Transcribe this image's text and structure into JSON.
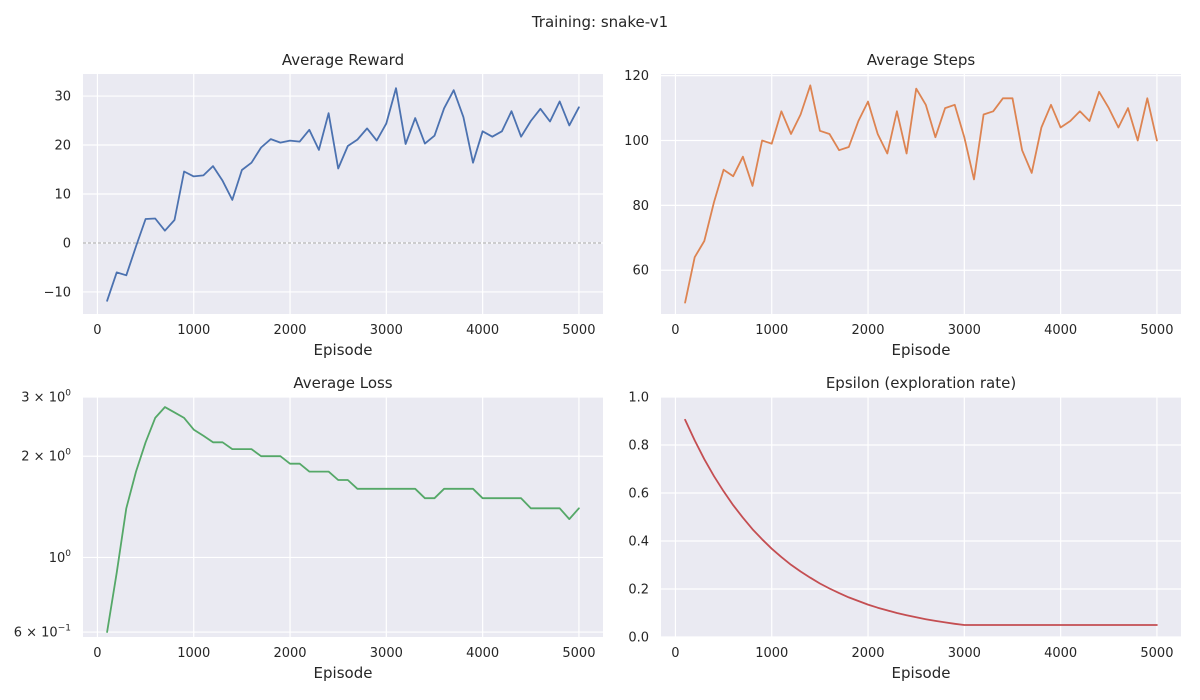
{
  "figure": {
    "title": "Training: snake-v1"
  },
  "chart_data": [
    {
      "type": "line",
      "title": "Average Reward",
      "xlabel": "Episode",
      "ylabel": "",
      "xlim": [
        -150,
        5250
      ],
      "ylim": [
        -14.5,
        34.5
      ],
      "xticks": [
        0,
        1000,
        2000,
        3000,
        4000,
        5000
      ],
      "xtick_labels": [
        "0",
        "1000",
        "2000",
        "3000",
        "4000",
        "5000"
      ],
      "yticks": [
        -10,
        0,
        10,
        20,
        30
      ],
      "ytick_labels": [
        "−10",
        "0",
        "10",
        "20",
        "30"
      ],
      "yscale": "linear",
      "grid": true,
      "reference_line": {
        "y": 0,
        "style": "dashed",
        "color": "#a8a8a8"
      },
      "series": [
        {
          "color": "#4c72b0",
          "x": [
            100,
            200,
            300,
            400,
            500,
            600,
            700,
            800,
            900,
            1000,
            1100,
            1200,
            1300,
            1400,
            1500,
            1600,
            1700,
            1800,
            1900,
            2000,
            2100,
            2200,
            2300,
            2400,
            2500,
            2600,
            2700,
            2800,
            2900,
            3000,
            3100,
            3200,
            3300,
            3400,
            3500,
            3600,
            3700,
            3800,
            3900,
            4000,
            4100,
            4200,
            4300,
            4400,
            4500,
            4600,
            4700,
            4800,
            4900,
            5000
          ],
          "y": [
            -11.8,
            -6.0,
            -6.6,
            -0.7,
            4.9,
            5.0,
            2.5,
            4.7,
            14.6,
            13.6,
            13.8,
            15.7,
            12.7,
            8.8,
            14.9,
            16.4,
            19.5,
            21.2,
            20.5,
            20.9,
            20.7,
            23.1,
            19.0,
            26.5,
            15.2,
            19.8,
            21.1,
            23.4,
            20.9,
            24.4,
            31.6,
            20.2,
            25.5,
            20.3,
            21.9,
            27.5,
            31.2,
            25.7,
            16.4,
            22.8,
            21.7,
            22.8,
            26.9,
            21.7,
            24.9,
            27.4,
            24.8,
            28.9,
            24.0,
            27.7
          ]
        }
      ]
    },
    {
      "type": "line",
      "title": "Average Steps",
      "xlabel": "Episode",
      "ylabel": "",
      "xlim": [
        -150,
        5250
      ],
      "ylim": [
        46.5,
        120.5
      ],
      "xticks": [
        0,
        1000,
        2000,
        3000,
        4000,
        5000
      ],
      "xtick_labels": [
        "0",
        "1000",
        "2000",
        "3000",
        "4000",
        "5000"
      ],
      "yticks": [
        60,
        80,
        100,
        120
      ],
      "ytick_labels": [
        "60",
        "80",
        "100",
        "120"
      ],
      "yscale": "linear",
      "grid": true,
      "series": [
        {
          "color": "#dd8452",
          "x": [
            100,
            200,
            300,
            400,
            500,
            600,
            700,
            800,
            900,
            1000,
            1100,
            1200,
            1300,
            1400,
            1500,
            1600,
            1700,
            1800,
            1900,
            2000,
            2100,
            2200,
            2300,
            2400,
            2500,
            2600,
            2700,
            2800,
            2900,
            3000,
            3100,
            3200,
            3300,
            3400,
            3500,
            3600,
            3700,
            3800,
            3900,
            4000,
            4100,
            4200,
            4300,
            4400,
            4500,
            4600,
            4700,
            4800,
            4900,
            5000
          ],
          "y": [
            50,
            64,
            69,
            81,
            91,
            89,
            95,
            86,
            100,
            99,
            109,
            102,
            108,
            117,
            103,
            102,
            97,
            98,
            106,
            112,
            102,
            96,
            109,
            96,
            116,
            111,
            101,
            110,
            111,
            101,
            88,
            108,
            109,
            113,
            113,
            97,
            90,
            104,
            111,
            104,
            106,
            109,
            106,
            115,
            110,
            104,
            110,
            100,
            113,
            100
          ]
        }
      ]
    },
    {
      "type": "line",
      "title": "Average Loss",
      "xlabel": "Episode",
      "ylabel": "",
      "xlim": [
        -150,
        5250
      ],
      "ylim": [
        0.58,
        3.0
      ],
      "xticks": [
        0,
        1000,
        2000,
        3000,
        4000,
        5000
      ],
      "xtick_labels": [
        "0",
        "1000",
        "2000",
        "3000",
        "4000",
        "5000"
      ],
      "yscale": "log",
      "yticks": [
        0.6,
        1,
        2,
        3
      ],
      "ytick_labels": [
        {
          "base": "6 × 10",
          "exp": "−1"
        },
        {
          "base": "10",
          "exp": "0"
        },
        {
          "base": "2 × 10",
          "exp": "0"
        },
        {
          "base": "3 × 10",
          "exp": "0"
        }
      ],
      "grid": true,
      "series": [
        {
          "color": "#55a868",
          "x": [
            100,
            200,
            300,
            400,
            500,
            600,
            700,
            800,
            900,
            1000,
            1100,
            1200,
            1300,
            1400,
            1500,
            1600,
            1700,
            1800,
            1900,
            2000,
            2100,
            2200,
            2300,
            2400,
            2500,
            2600,
            2700,
            2800,
            2900,
            3000,
            3100,
            3200,
            3300,
            3400,
            3500,
            3600,
            3700,
            3800,
            3900,
            4000,
            4100,
            4200,
            4300,
            4400,
            4500,
            4600,
            4700,
            4800,
            4900,
            5000
          ],
          "y": [
            0.6,
            0.9,
            1.4,
            1.8,
            2.2,
            2.6,
            2.8,
            2.7,
            2.6,
            2.4,
            2.3,
            2.2,
            2.2,
            2.1,
            2.1,
            2.1,
            2.0,
            2.0,
            2.0,
            1.9,
            1.9,
            1.8,
            1.8,
            1.8,
            1.7,
            1.7,
            1.6,
            1.6,
            1.6,
            1.6,
            1.6,
            1.6,
            1.6,
            1.5,
            1.5,
            1.6,
            1.6,
            1.6,
            1.6,
            1.5,
            1.5,
            1.5,
            1.5,
            1.5,
            1.4,
            1.4,
            1.4,
            1.4,
            1.3,
            1.4
          ]
        }
      ]
    },
    {
      "type": "line",
      "title": "Epsilon (exploration rate)",
      "xlabel": "Episode",
      "ylabel": "",
      "xlim": [
        -150,
        5250
      ],
      "ylim": [
        0.0,
        1.0
      ],
      "xticks": [
        0,
        1000,
        2000,
        3000,
        4000,
        5000
      ],
      "xtick_labels": [
        "0",
        "1000",
        "2000",
        "3000",
        "4000",
        "5000"
      ],
      "yticks": [
        0.0,
        0.2,
        0.4,
        0.6,
        0.8,
        1.0
      ],
      "ytick_labels": [
        "0.0",
        "0.2",
        "0.4",
        "0.6",
        "0.8",
        "1.0"
      ],
      "yscale": "linear",
      "grid": true,
      "series": [
        {
          "color": "#c44e52",
          "x": [
            100,
            200,
            300,
            400,
            500,
            600,
            700,
            800,
            900,
            1000,
            1100,
            1200,
            1300,
            1400,
            1500,
            1600,
            1700,
            1800,
            1900,
            2000,
            2100,
            2200,
            2300,
            2400,
            2500,
            2600,
            2700,
            2800,
            2900,
            3000,
            3100,
            3200,
            3300,
            3400,
            3500,
            3600,
            3700,
            3800,
            3900,
            4000,
            4100,
            4200,
            4300,
            4400,
            4500,
            4600,
            4700,
            4800,
            4900,
            5000
          ],
          "y": [
            0.905,
            0.819,
            0.741,
            0.67,
            0.607,
            0.549,
            0.497,
            0.449,
            0.407,
            0.368,
            0.333,
            0.301,
            0.273,
            0.247,
            0.223,
            0.202,
            0.183,
            0.165,
            0.15,
            0.135,
            0.122,
            0.111,
            0.1,
            0.091,
            0.082,
            0.074,
            0.067,
            0.061,
            0.055,
            0.05,
            0.05,
            0.05,
            0.05,
            0.05,
            0.05,
            0.05,
            0.05,
            0.05,
            0.05,
            0.05,
            0.05,
            0.05,
            0.05,
            0.05,
            0.05,
            0.05,
            0.05,
            0.05,
            0.05,
            0.05
          ]
        }
      ]
    }
  ]
}
